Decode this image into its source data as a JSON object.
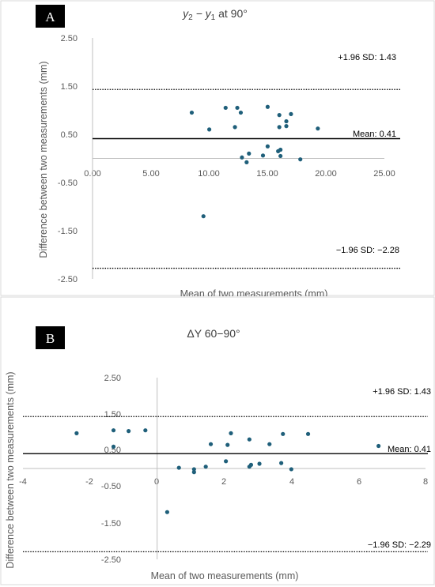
{
  "colors": {
    "point": "#1f5f7a"
  },
  "chart_data": [
    {
      "type": "scatter",
      "panel_label": "A",
      "title": {
        "main": "y",
        "sub1": "2",
        "mid": " − y",
        "sub2": "1",
        "tail": " at 90°"
      },
      "xlabel": "Mean of two measurements (mm)",
      "ylabel": "Difference between two measurements (mm)",
      "xlim": [
        0,
        25
      ],
      "ylim": [
        -2.5,
        2.5
      ],
      "xticks": [
        "0.00",
        "5.00",
        "10.00",
        "15.00",
        "20.00",
        "25.00"
      ],
      "yticks": [
        "2.50",
        "1.50",
        "0.50",
        "-0.50",
        "-1.50",
        "-2.50"
      ],
      "grid": false,
      "reference_lines": {
        "upper": {
          "value": 1.43,
          "label": "+1.96 SD: 1.43"
        },
        "mean": {
          "value": 0.41,
          "label": "Mean: 0.41"
        },
        "lower": {
          "value": -2.28,
          "label": "−1.96 SD: −2.28"
        }
      },
      "points": [
        {
          "x": 8.5,
          "y": 0.95
        },
        {
          "x": 10.0,
          "y": 0.6
        },
        {
          "x": 11.4,
          "y": 1.05
        },
        {
          "x": 12.2,
          "y": 0.65
        },
        {
          "x": 12.4,
          "y": 1.05
        },
        {
          "x": 12.7,
          "y": 0.95
        },
        {
          "x": 12.8,
          "y": 0.02
        },
        {
          "x": 13.2,
          "y": -0.08
        },
        {
          "x": 13.4,
          "y": 0.1
        },
        {
          "x": 14.6,
          "y": 0.06
        },
        {
          "x": 15.0,
          "y": 1.07
        },
        {
          "x": 15.0,
          "y": 0.25
        },
        {
          "x": 15.9,
          "y": 0.15
        },
        {
          "x": 16.0,
          "y": 0.9
        },
        {
          "x": 16.0,
          "y": 0.65
        },
        {
          "x": 16.1,
          "y": 0.18
        },
        {
          "x": 16.1,
          "y": 0.05
        },
        {
          "x": 16.6,
          "y": 0.77
        },
        {
          "x": 16.6,
          "y": 0.67
        },
        {
          "x": 17.0,
          "y": 0.92
        },
        {
          "x": 17.8,
          "y": -0.02
        },
        {
          "x": 19.3,
          "y": 0.62
        },
        {
          "x": 9.5,
          "y": -1.2
        }
      ]
    },
    {
      "type": "scatter",
      "panel_label": "B",
      "title": {
        "main": "ΔY 60−90°"
      },
      "xlabel": "Mean of two measurements (mm)",
      "ylabel": "Difference between two measurements (mm)",
      "xlim": [
        -4,
        8
      ],
      "ylim": [
        -2.5,
        2.5
      ],
      "xticks": [
        "-4",
        "-2",
        "0",
        "2",
        "4",
        "6",
        "8"
      ],
      "yticks": [
        "2.50",
        "1.50",
        "0.50",
        "-0.50",
        "-1.50",
        "-2.50"
      ],
      "grid": false,
      "reference_lines": {
        "upper": {
          "value": 1.43,
          "label": "+1.96 SD: 1.43"
        },
        "mean": {
          "value": 0.41,
          "label": "Mean: 0.41"
        },
        "lower": {
          "value": -2.29,
          "label": "−1.96 SD: −2.29"
        }
      },
      "points": [
        {
          "x": -2.4,
          "y": 0.97
        },
        {
          "x": -1.3,
          "y": 1.05
        },
        {
          "x": -1.3,
          "y": 0.6
        },
        {
          "x": -0.85,
          "y": 1.03
        },
        {
          "x": -0.35,
          "y": 1.05
        },
        {
          "x": 0.3,
          "y": -1.2
        },
        {
          "x": 0.65,
          "y": 0.02
        },
        {
          "x": 1.1,
          "y": -0.02
        },
        {
          "x": 1.1,
          "y": -0.1
        },
        {
          "x": 1.45,
          "y": 0.05
        },
        {
          "x": 1.6,
          "y": 0.67
        },
        {
          "x": 2.05,
          "y": 0.2
        },
        {
          "x": 2.1,
          "y": 0.65
        },
        {
          "x": 2.2,
          "y": 0.97
        },
        {
          "x": 2.75,
          "y": 0.05
        },
        {
          "x": 2.75,
          "y": 0.8
        },
        {
          "x": 2.8,
          "y": 0.1
        },
        {
          "x": 3.05,
          "y": 0.13
        },
        {
          "x": 3.35,
          "y": 0.67
        },
        {
          "x": 3.7,
          "y": 0.15
        },
        {
          "x": 3.75,
          "y": 0.95
        },
        {
          "x": 4.0,
          "y": -0.02
        },
        {
          "x": 4.5,
          "y": 0.95
        },
        {
          "x": 6.6,
          "y": 0.62
        }
      ]
    }
  ]
}
